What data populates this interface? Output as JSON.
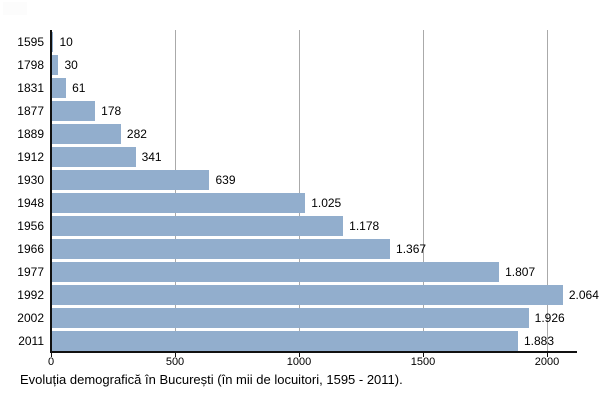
{
  "chart_data": {
    "type": "bar",
    "orientation": "horizontal",
    "title": "",
    "caption": "Evoluția demografică în București (în mii de locuitori, 1595 - 2011).",
    "categories": [
      "1595",
      "1798",
      "1831",
      "1877",
      "1889",
      "1912",
      "1930",
      "1948",
      "1956",
      "1966",
      "1977",
      "1992",
      "2002",
      "2011"
    ],
    "values": [
      10,
      30,
      61,
      178,
      282,
      341,
      639,
      1025,
      1178,
      1367,
      1807,
      2064,
      1926,
      1883
    ],
    "value_labels": [
      "10",
      "30",
      "61",
      "178",
      "282",
      "341",
      "639",
      "1.025",
      "1.178",
      "1.367",
      "1.807",
      "2.064",
      "1.926",
      "1.883"
    ],
    "x_ticks": [
      0,
      500,
      1000,
      1500,
      2000
    ],
    "x_tick_labels": [
      "0",
      "500",
      "1000",
      "1500",
      "2000"
    ],
    "xlim": [
      0,
      2120
    ],
    "grid": "vertical-only",
    "legend": "none",
    "bar_color": "#92aecd",
    "gridline_color": "#aaaaaa",
    "axis_color": "#111111",
    "text_color": "#000000"
  }
}
